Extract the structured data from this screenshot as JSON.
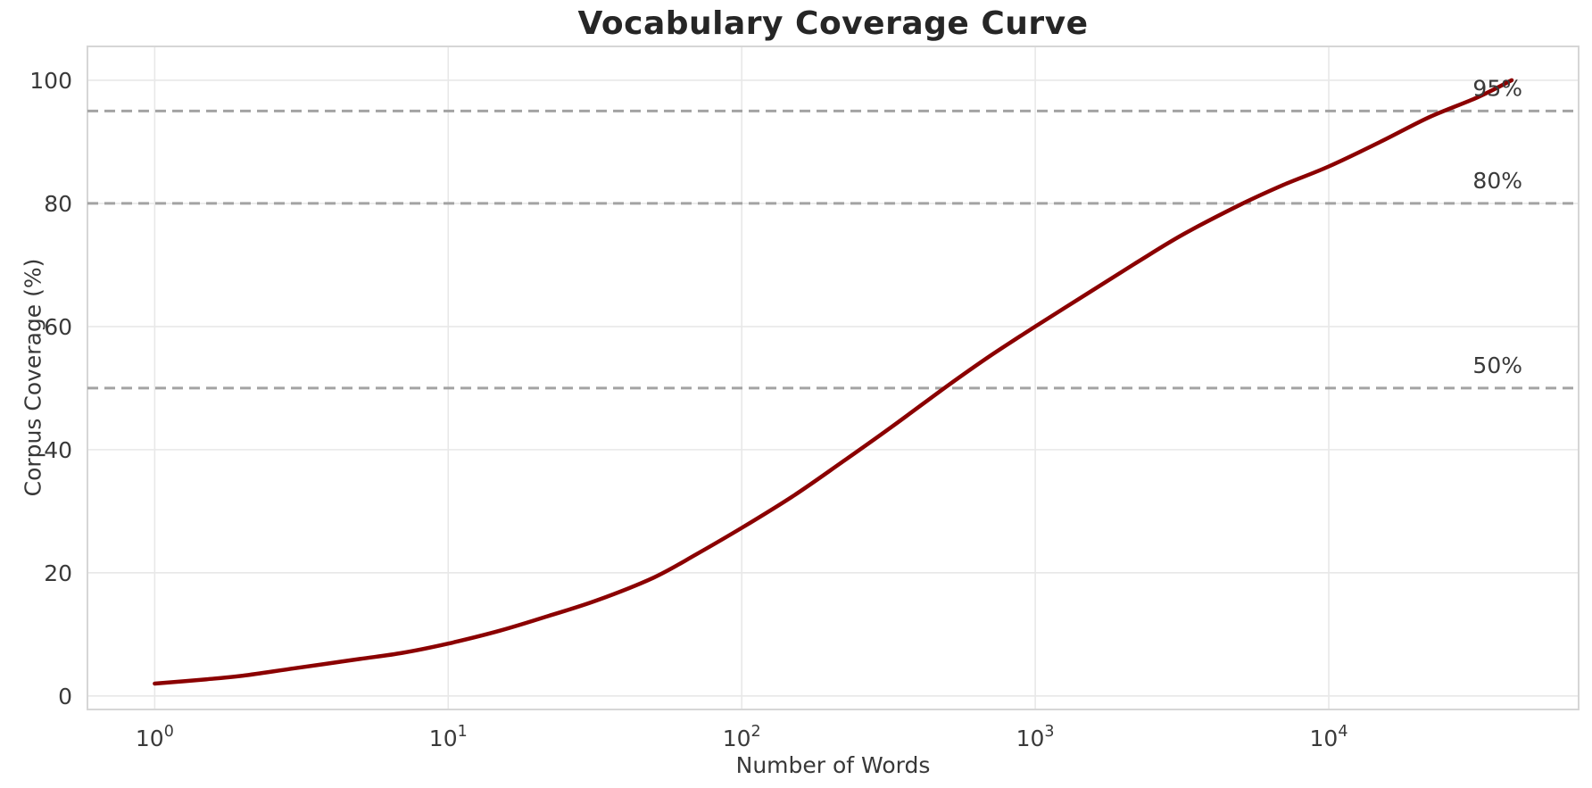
{
  "chart": {
    "title": "Vocabulary Coverage Curve",
    "xlabel": "Number of Words",
    "ylabel": "Corpus Coverage (%)"
  },
  "chart_data": {
    "type": "line",
    "title": "Vocabulary Coverage Curve",
    "xlabel": "Number of Words",
    "ylabel": "Corpus Coverage (%)",
    "x_scale": "log",
    "xlim": [
      0.59,
      71000
    ],
    "ylim": [
      -2.2,
      105.5
    ],
    "x_ticks": [
      1,
      10,
      100,
      1000,
      10000
    ],
    "x_tick_labels": [
      "10^0",
      "10^1",
      "10^2",
      "10^3",
      "10^4"
    ],
    "y_ticks": [
      0,
      20,
      40,
      60,
      80,
      100
    ],
    "y_tick_labels": [
      "0",
      "20",
      "40",
      "60",
      "80",
      "100"
    ],
    "grid": true,
    "legend": false,
    "colors": {
      "curve": "#8b0000",
      "reference_line": "#a3a3a3",
      "gridline": "#e8e8e8",
      "spine": "#d6d6d6",
      "tick_text": "#3a3a3a",
      "title_text": "#262626"
    },
    "series": [
      {
        "name": "corpus-coverage",
        "color": "#8b0000",
        "points": [
          [
            1,
            2.0
          ],
          [
            1.5,
            2.7
          ],
          [
            2,
            3.3
          ],
          [
            3,
            4.5
          ],
          [
            5,
            6.0
          ],
          [
            7,
            7.0
          ],
          [
            10,
            8.5
          ],
          [
            15,
            10.6
          ],
          [
            22,
            13.0
          ],
          [
            32,
            15.5
          ],
          [
            50,
            19.2
          ],
          [
            70,
            23.0
          ],
          [
            100,
            27.3
          ],
          [
            150,
            32.5
          ],
          [
            220,
            38.0
          ],
          [
            320,
            43.5
          ],
          [
            500,
            50.3
          ],
          [
            700,
            55.2
          ],
          [
            1000,
            60.0
          ],
          [
            1500,
            65.3
          ],
          [
            2200,
            70.3
          ],
          [
            3200,
            75.0
          ],
          [
            5000,
            79.8
          ],
          [
            7000,
            83.0
          ],
          [
            10000,
            86.0
          ],
          [
            15000,
            90.0
          ],
          [
            22000,
            94.0
          ],
          [
            32000,
            97.2
          ],
          [
            42000,
            100.0
          ]
        ]
      }
    ],
    "reference_lines": [
      {
        "value": 50,
        "label": "50%",
        "style": "dashed",
        "color": "#a3a3a3"
      },
      {
        "value": 80,
        "label": "80%",
        "style": "dashed",
        "color": "#a3a3a3"
      },
      {
        "value": 95,
        "label": "95%",
        "style": "dashed",
        "color": "#a3a3a3"
      }
    ]
  }
}
